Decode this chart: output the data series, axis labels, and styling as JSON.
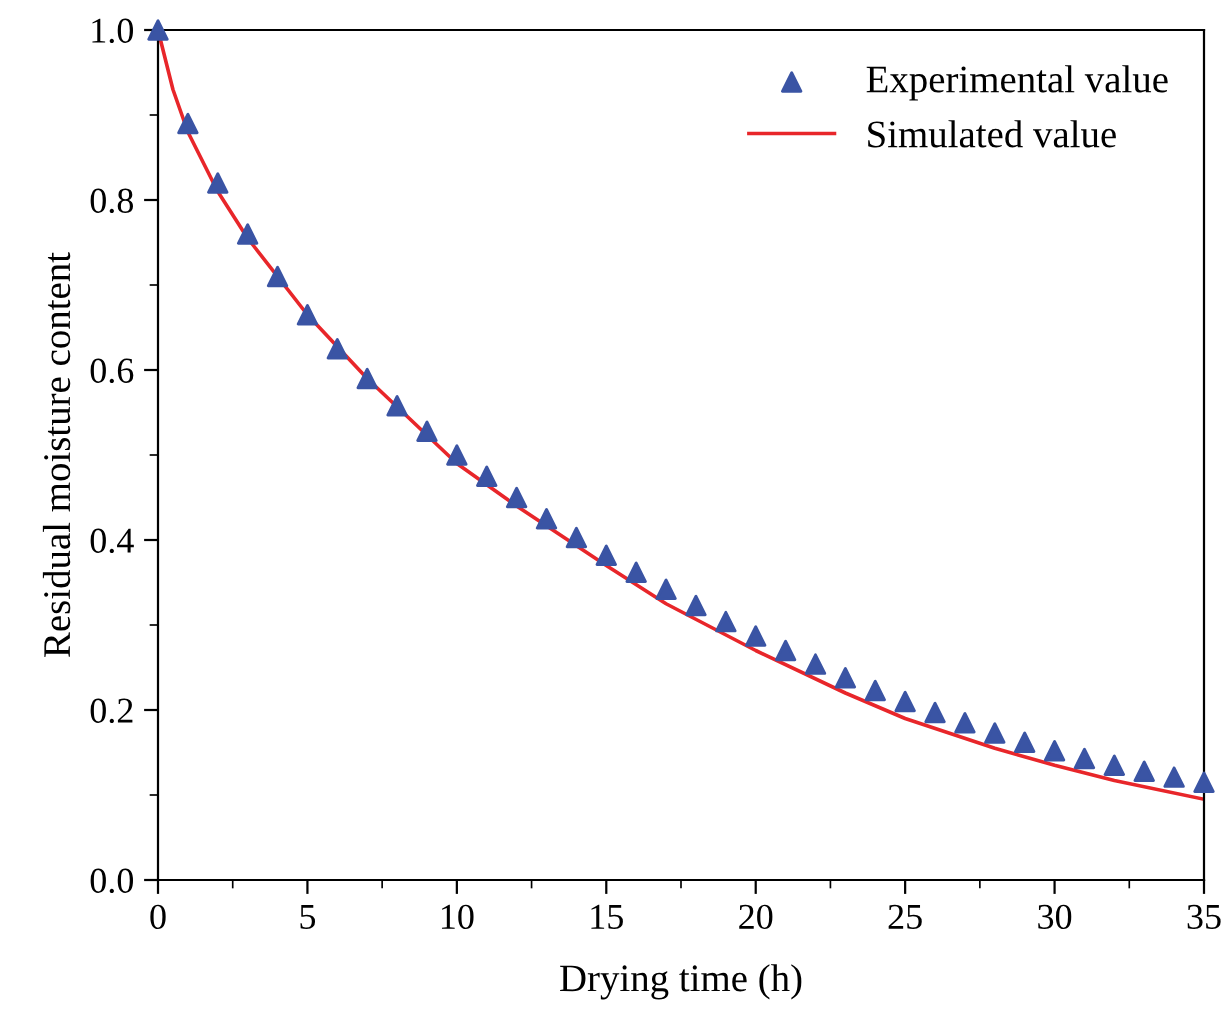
{
  "chart_data": {
    "type": "scatter",
    "xlabel": "Drying time (h)",
    "ylabel": "Residual moisture content",
    "xlim": [
      0,
      35
    ],
    "ylim": [
      0,
      1.0
    ],
    "xticks": [
      0,
      5,
      10,
      15,
      20,
      25,
      30,
      35
    ],
    "yticks": [
      {
        "value": 0,
        "label": "0.0"
      },
      {
        "value": 0.2,
        "label": "0.2"
      },
      {
        "value": 0.4,
        "label": "0.4"
      },
      {
        "value": 0.6,
        "label": "0.6"
      },
      {
        "value": 0.8,
        "label": "0.8"
      },
      {
        "value": 1.0,
        "label": "1.0"
      }
    ],
    "grid": false,
    "legend": "top right",
    "series": [
      {
        "name": "Experimental value",
        "marker": "triangle",
        "color": "#3a54a4",
        "x": [
          0,
          1,
          2,
          3,
          4,
          5,
          6,
          7,
          8,
          9,
          10,
          11,
          12,
          13,
          14,
          15,
          16,
          17,
          18,
          19,
          20,
          21,
          22,
          23,
          24,
          25,
          26,
          27,
          28,
          29,
          30,
          31,
          32,
          33,
          34,
          35
        ],
        "values": [
          1.0,
          0.89,
          0.82,
          0.76,
          0.71,
          0.665,
          0.625,
          0.59,
          0.558,
          0.528,
          0.5,
          0.475,
          0.45,
          0.425,
          0.403,
          0.382,
          0.362,
          0.342,
          0.323,
          0.304,
          0.287,
          0.27,
          0.254,
          0.238,
          0.223,
          0.21,
          0.197,
          0.185,
          0.173,
          0.162,
          0.152,
          0.143,
          0.135,
          0.128,
          0.121,
          0.115
        ]
      },
      {
        "name": "Simulated value",
        "type": "line",
        "marker": "none",
        "line_style": "solid",
        "color": "#e8262a",
        "x": [
          0,
          0.5,
          1,
          2,
          3,
          5,
          7,
          10,
          12,
          15,
          17,
          20,
          23,
          25,
          28,
          30,
          32,
          35
        ],
        "values": [
          1.0,
          0.93,
          0.88,
          0.81,
          0.755,
          0.665,
          0.59,
          0.49,
          0.44,
          0.37,
          0.325,
          0.27,
          0.22,
          0.19,
          0.155,
          0.135,
          0.117,
          0.095
        ]
      }
    ]
  }
}
